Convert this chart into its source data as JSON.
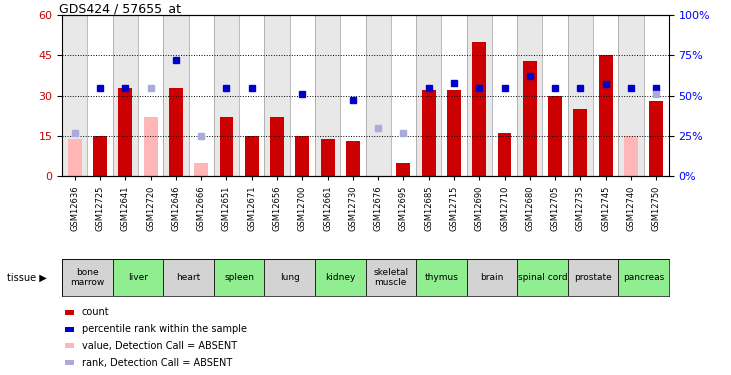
{
  "title": "GDS424 / 57655_at",
  "samples": [
    "GSM12636",
    "GSM12725",
    "GSM12641",
    "GSM12720",
    "GSM12646",
    "GSM12666",
    "GSM12651",
    "GSM12671",
    "GSM12656",
    "GSM12700",
    "GSM12661",
    "GSM12730",
    "GSM12676",
    "GSM12695",
    "GSM12685",
    "GSM12715",
    "GSM12690",
    "GSM12710",
    "GSM12680",
    "GSM12705",
    "GSM12735",
    "GSM12745",
    "GSM12740",
    "GSM12750"
  ],
  "tissues": [
    {
      "name": "bone\nmarrow",
      "start": 0,
      "end": 2,
      "color": "#d3d3d3"
    },
    {
      "name": "liver",
      "start": 2,
      "end": 4,
      "color": "#90ee90"
    },
    {
      "name": "heart",
      "start": 4,
      "end": 6,
      "color": "#d3d3d3"
    },
    {
      "name": "spleen",
      "start": 6,
      "end": 8,
      "color": "#90ee90"
    },
    {
      "name": "lung",
      "start": 8,
      "end": 10,
      "color": "#d3d3d3"
    },
    {
      "name": "kidney",
      "start": 10,
      "end": 12,
      "color": "#90ee90"
    },
    {
      "name": "skeletal\nmuscle",
      "start": 12,
      "end": 14,
      "color": "#d3d3d3"
    },
    {
      "name": "thymus",
      "start": 14,
      "end": 16,
      "color": "#90ee90"
    },
    {
      "name": "brain",
      "start": 16,
      "end": 18,
      "color": "#d3d3d3"
    },
    {
      "name": "spinal cord",
      "start": 18,
      "end": 20,
      "color": "#90ee90"
    },
    {
      "name": "prostate",
      "start": 20,
      "end": 22,
      "color": "#d3d3d3"
    },
    {
      "name": "pancreas",
      "start": 22,
      "end": 24,
      "color": "#90ee90"
    }
  ],
  "bar_red_values": [
    0,
    15,
    33,
    0,
    33,
    0,
    22,
    15,
    22,
    15,
    14,
    13,
    0,
    5,
    32,
    32,
    50,
    16,
    43,
    30,
    25,
    45,
    0,
    28
  ],
  "bar_pink_values": [
    14,
    0,
    0,
    22,
    0,
    5,
    0,
    0,
    0,
    14,
    0,
    0,
    0,
    3,
    0,
    0,
    0,
    0,
    0,
    0,
    0,
    0,
    15,
    0
  ],
  "dot_blue_pct": [
    0,
    55,
    55,
    0,
    72,
    0,
    55,
    55,
    0,
    51,
    0,
    47,
    0,
    0,
    55,
    58,
    55,
    55,
    62,
    55,
    55,
    57,
    55,
    55
  ],
  "dot_lightblue_pct": [
    27,
    0,
    0,
    55,
    0,
    25,
    0,
    0,
    0,
    0,
    0,
    0,
    30,
    27,
    0,
    0,
    0,
    0,
    0,
    0,
    0,
    0,
    0,
    51
  ],
  "ylim_left": [
    0,
    60
  ],
  "ylim_right": [
    0,
    100
  ],
  "yticks_left": [
    0,
    15,
    30,
    45,
    60
  ],
  "yticks_right": [
    0,
    25,
    50,
    75,
    100
  ],
  "bar_red_color": "#cc0000",
  "bar_pink_color": "#ffb6b6",
  "dot_blue_color": "#0000cc",
  "dot_lightblue_color": "#aaaadd",
  "col_bg_odd": "#e8e8e8",
  "col_bg_even": "#ffffff"
}
